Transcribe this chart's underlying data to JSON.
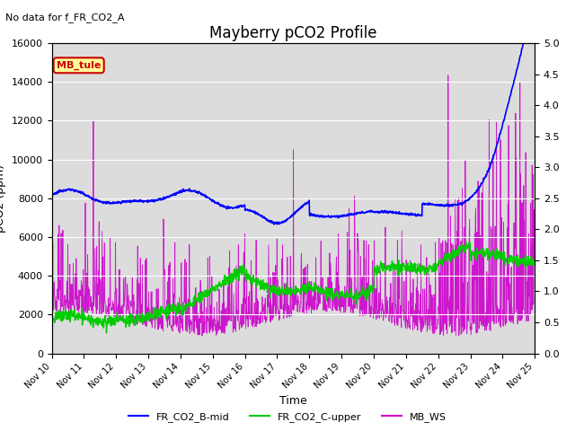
{
  "title": "Mayberry pCO2 Profile",
  "subtitle": "No data for f_FR_CO2_A",
  "xlabel": "Time",
  "ylabel_left": "pCO2 (ppm)",
  "ylim_left": [
    0,
    16000
  ],
  "ylim_right": [
    0,
    5.0
  ],
  "yticks_left": [
    0,
    2000,
    4000,
    6000,
    8000,
    10000,
    12000,
    14000,
    16000
  ],
  "yticks_right": [
    0.0,
    0.5,
    1.0,
    1.5,
    2.0,
    2.5,
    3.0,
    3.5,
    4.0,
    4.5,
    5.0
  ],
  "xticklabels": [
    "Nov 10",
    "Nov 11",
    "Nov 12",
    "Nov 13",
    "Nov 14",
    "Nov 15",
    "Nov 16",
    "Nov 17",
    "Nov 18",
    "Nov 19",
    "Nov 20",
    "Nov 21",
    "Nov 22",
    "Nov 23",
    "Nov 24",
    "Nov 25"
  ],
  "annotation_text": "MB_tule",
  "annotation_color": "#cc0000",
  "annotation_bg": "#ffff99",
  "bg_color": "#dcdcdc",
  "n_days": 15,
  "pts_per_day": 96
}
